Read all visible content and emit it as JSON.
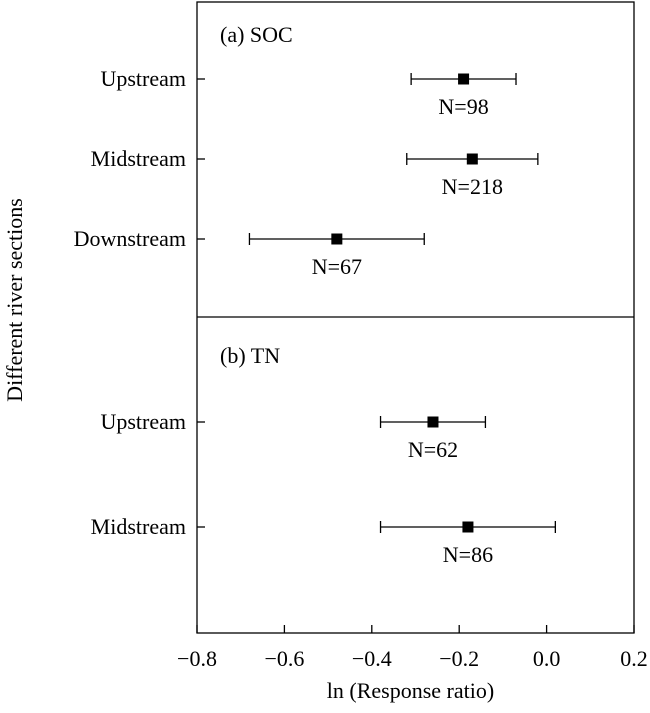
{
  "chart_data": {
    "type": "forest",
    "xlabel": "ln (Response ratio)",
    "ylabel": "Different river sections",
    "xlim": [
      -0.8,
      0.2
    ],
    "xticks": [
      "−0.8",
      "−0.6",
      "−0.4",
      "−0.2",
      "0.0",
      "0.2"
    ],
    "panels": [
      {
        "title": "(a) SOC",
        "rows": [
          {
            "category": "Upstream",
            "value": -0.19,
            "ci_low": -0.31,
            "ci_high": -0.07,
            "n_label": "N=98"
          },
          {
            "category": "Midstream",
            "value": -0.17,
            "ci_low": -0.32,
            "ci_high": -0.02,
            "n_label": "N=218"
          },
          {
            "category": "Downstream",
            "value": -0.48,
            "ci_low": -0.68,
            "ci_high": -0.28,
            "n_label": "N=67"
          }
        ]
      },
      {
        "title": "(b) TN",
        "rows": [
          {
            "category": "Upstream",
            "value": -0.26,
            "ci_low": -0.38,
            "ci_high": -0.14,
            "n_label": "N=62"
          },
          {
            "category": "Midstream",
            "value": -0.18,
            "ci_low": -0.38,
            "ci_high": 0.02,
            "n_label": "N=86"
          }
        ]
      }
    ]
  }
}
